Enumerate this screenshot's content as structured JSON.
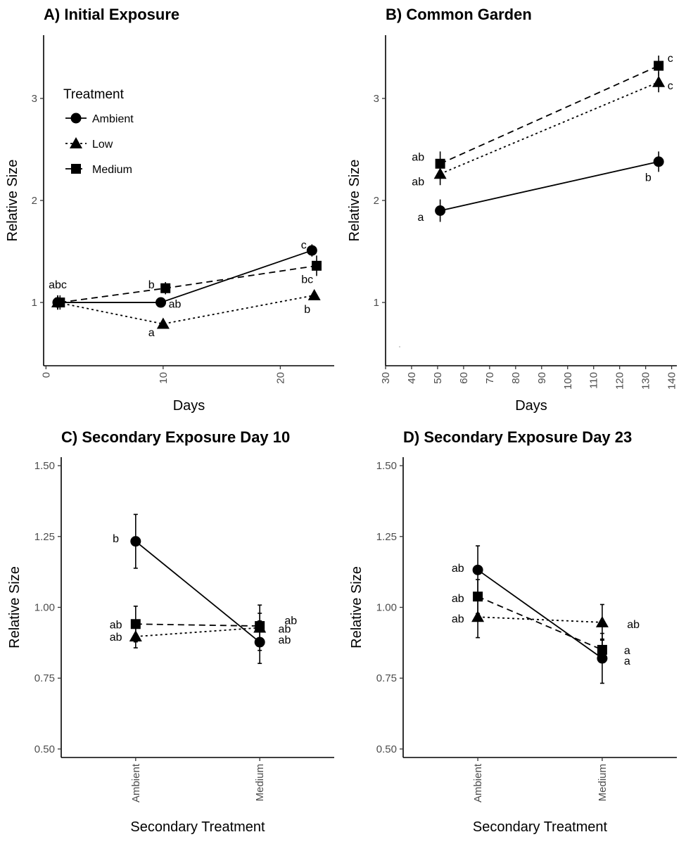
{
  "figure": {
    "width": 975,
    "height": 1200
  },
  "legend": {
    "title": "Treatment",
    "entries": [
      {
        "name": "Ambient",
        "symbol": "circle",
        "dash": "solid"
      },
      {
        "name": "Low",
        "symbol": "triangle",
        "dash": "dotted"
      },
      {
        "name": "Medium",
        "symbol": "square",
        "dash": "dashed"
      }
    ]
  },
  "chart_data": [
    {
      "id": "A",
      "type": "line",
      "title": "A) Initial Exposure",
      "xlabel": "Days",
      "ylabel": "Relative Size",
      "xlim": [
        -0.2,
        24.6
      ],
      "ylim": [
        0.38,
        3.62
      ],
      "xticks": [
        0,
        10,
        20
      ],
      "yticks": [
        1,
        2,
        3
      ],
      "x_tick_rotation": -90,
      "series": [
        {
          "name": "Ambient",
          "symbol": "circle",
          "dash": "solid",
          "points": [
            {
              "x": 1.0,
              "y": 1.0,
              "err": 0.07
            },
            {
              "x": 9.8,
              "y": 1.0,
              "err": 0.0
            },
            {
              "x": 22.7,
              "y": 1.51,
              "err": 0.06
            }
          ]
        },
        {
          "name": "Low",
          "symbol": "triangle",
          "dash": "dotted",
          "points": [
            {
              "x": 1.0,
              "y": 1.0,
              "err": 0.07
            },
            {
              "x": 10.0,
              "y": 0.79,
              "err": 0.0
            },
            {
              "x": 22.9,
              "y": 1.07,
              "err": 0.0
            }
          ]
        },
        {
          "name": "Medium",
          "symbol": "square",
          "dash": "dashed",
          "points": [
            {
              "x": 1.2,
              "y": 1.0,
              "err": 0.07
            },
            {
              "x": 10.2,
              "y": 1.14,
              "err": 0.06
            },
            {
              "x": 23.1,
              "y": 1.36,
              "err": 0.1
            }
          ]
        }
      ],
      "annotations": [
        {
          "text": "abc",
          "x": 1.0,
          "y": 1.18
        },
        {
          "text": "b",
          "x": 9.0,
          "y": 1.18
        },
        {
          "text": "ab",
          "x": 11.0,
          "y": 0.99
        },
        {
          "text": "a",
          "x": 9.0,
          "y": 0.71
        },
        {
          "text": "c",
          "x": 22.0,
          "y": 1.57
        },
        {
          "text": "bc",
          "x": 22.3,
          "y": 1.23
        },
        {
          "text": "b",
          "x": 22.3,
          "y": 0.94
        }
      ]
    },
    {
      "id": "B",
      "type": "line",
      "title": "B) Common Garden",
      "xlabel": "Days",
      "ylabel": "Relative Size",
      "xlim": [
        30,
        142
      ],
      "ylim": [
        0.38,
        3.62
      ],
      "xticks": [
        30,
        40,
        50,
        60,
        70,
        80,
        90,
        100,
        110,
        120,
        130,
        140
      ],
      "yticks": [
        1,
        2,
        3
      ],
      "x_tick_rotation": -90,
      "series": [
        {
          "name": "Ambient",
          "symbol": "circle",
          "dash": "solid",
          "points": [
            {
              "x": 51,
              "y": 1.9,
              "err": 0.11
            },
            {
              "x": 135,
              "y": 2.38,
              "err": 0.1
            }
          ]
        },
        {
          "name": "Low",
          "symbol": "triangle",
          "dash": "dotted",
          "points": [
            {
              "x": 51,
              "y": 2.26,
              "err": 0.11
            },
            {
              "x": 135,
              "y": 3.16,
              "err": 0.1
            }
          ]
        },
        {
          "name": "Medium",
          "symbol": "square",
          "dash": "dashed",
          "points": [
            {
              "x": 51,
              "y": 2.36,
              "err": 0.12
            },
            {
              "x": 135,
              "y": 3.32,
              "err": 0.1
            }
          ]
        }
      ],
      "annotations": [
        {
          "text": "ab",
          "x": 42.5,
          "y": 2.43
        },
        {
          "text": "ab",
          "x": 42.5,
          "y": 2.19
        },
        {
          "text": "a",
          "x": 43.5,
          "y": 1.84
        },
        {
          "text": "b",
          "x": 131.0,
          "y": 2.23
        },
        {
          "text": "c",
          "x": 139.5,
          "y": 3.4
        },
        {
          "text": "c",
          "x": 139.5,
          "y": 3.13
        }
      ]
    },
    {
      "id": "C",
      "type": "line",
      "title": "C) Secondary Exposure Day 10",
      "xlabel": "Secondary Treatment",
      "ylabel": "Relative Size",
      "categories": [
        "Ambient",
        "Medium"
      ],
      "ylim": [
        0.47,
        1.53
      ],
      "yticks": [
        0.5,
        0.75,
        1.0,
        1.25,
        1.5
      ],
      "ytick_labels": [
        "0.50",
        "0.75",
        "1.00",
        "1.25",
        "1.50"
      ],
      "x_tick_rotation": -90,
      "series": [
        {
          "name": "Ambient",
          "symbol": "circle",
          "dash": "solid",
          "points": [
            {
              "x": "Ambient",
              "y": 1.233,
              "err": 0.095
            },
            {
              "x": "Medium",
              "y": 0.877,
              "err": 0.075
            }
          ]
        },
        {
          "name": "Low",
          "symbol": "triangle",
          "dash": "dotted",
          "points": [
            {
              "x": "Ambient",
              "y": 0.897,
              "err": 0.04
            },
            {
              "x": "Medium",
              "y": 0.928,
              "err": 0.08
            }
          ]
        },
        {
          "name": "Medium",
          "symbol": "square",
          "dash": "dashed",
          "points": [
            {
              "x": "Ambient",
              "y": 0.941,
              "err": 0.063
            },
            {
              "x": "Medium",
              "y": 0.934,
              "err": 0.045
            }
          ]
        }
      ],
      "annotations": [
        {
          "text": "b",
          "x": "Ambient",
          "dx": -0.16,
          "y": 1.245
        },
        {
          "text": "ab",
          "x": "Ambient",
          "dx": -0.16,
          "y": 0.94
        },
        {
          "text": "ab",
          "x": "Ambient",
          "dx": -0.16,
          "y": 0.897
        },
        {
          "text": "ab",
          "x": "Medium",
          "dx": 0.25,
          "y": 0.955
        },
        {
          "text": "ab",
          "x": "Medium",
          "dx": 0.2,
          "y": 0.925
        },
        {
          "text": "ab",
          "x": "Medium",
          "dx": 0.2,
          "y": 0.887
        }
      ]
    },
    {
      "id": "D",
      "type": "line",
      "title": "D) Secondary Exposure Day 23",
      "xlabel": "Secondary Treatment",
      "ylabel": "Relative Size",
      "categories": [
        "Ambient",
        "Medium"
      ],
      "ylim": [
        0.47,
        1.53
      ],
      "yticks": [
        0.5,
        0.75,
        1.0,
        1.25,
        1.5
      ],
      "ytick_labels": [
        "0.50",
        "0.75",
        "1.00",
        "1.25",
        "1.50"
      ],
      "x_tick_rotation": -90,
      "series": [
        {
          "name": "Ambient",
          "symbol": "circle",
          "dash": "solid",
          "points": [
            {
              "x": "Ambient",
              "y": 1.132,
              "err": 0.085
            },
            {
              "x": "Medium",
              "y": 0.82,
              "err": 0.088
            }
          ]
        },
        {
          "name": "Low",
          "symbol": "triangle",
          "dash": "dotted",
          "points": [
            {
              "x": "Ambient",
              "y": 0.966,
              "err": 0.073
            },
            {
              "x": "Medium",
              "y": 0.947,
              "err": 0.063
            }
          ]
        },
        {
          "name": "Medium",
          "symbol": "square",
          "dash": "dashed",
          "points": [
            {
              "x": "Ambient",
              "y": 1.038,
              "err": 0.06
            },
            {
              "x": "Medium",
              "y": 0.85,
              "err": 0.038
            }
          ]
        }
      ],
      "annotations": [
        {
          "text": "ab",
          "x": "Ambient",
          "dx": -0.16,
          "y": 1.14
        },
        {
          "text": "ab",
          "x": "Ambient",
          "dx": -0.16,
          "y": 1.034
        },
        {
          "text": "ab",
          "x": "Ambient",
          "dx": -0.16,
          "y": 0.962
        },
        {
          "text": "ab",
          "x": "Medium",
          "dx": 0.25,
          "y": 0.942
        },
        {
          "text": "a",
          "x": "Medium",
          "dx": 0.2,
          "y": 0.85
        },
        {
          "text": "a",
          "x": "Medium",
          "dx": 0.2,
          "y": 0.813
        }
      ]
    }
  ]
}
